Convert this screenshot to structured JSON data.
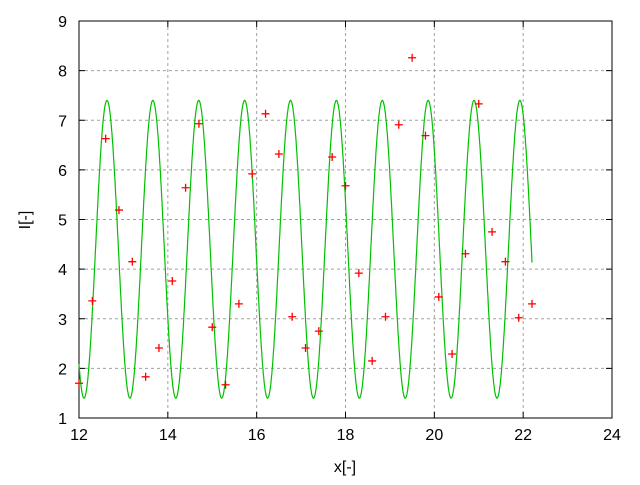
{
  "chart_data": {
    "type": "scatter",
    "xlabel": "x[-]",
    "ylabel": "I[-]",
    "xlim": [
      12,
      24
    ],
    "ylim": [
      1,
      9
    ],
    "grid": true,
    "xticks": [
      "12",
      "14",
      "16",
      "18",
      "20",
      "22",
      "24"
    ],
    "yticks": [
      "1",
      "2",
      "3",
      "4",
      "5",
      "6",
      "7",
      "8",
      "9"
    ],
    "colors": {
      "points": "#ff0000",
      "curve": "#00c000",
      "grid": "#a0a0a0"
    },
    "points": {
      "marker": "plus",
      "x": [
        12.0,
        12.3,
        12.6,
        12.9,
        13.2,
        13.5,
        13.8,
        14.1,
        14.4,
        14.7,
        15.0,
        15.3,
        15.6,
        15.9,
        16.2,
        16.5,
        16.8,
        17.1,
        17.4,
        17.7,
        18.0,
        18.3,
        18.6,
        18.9,
        19.2,
        19.5,
        19.8,
        20.1,
        20.4,
        20.7,
        21.0,
        21.3,
        21.6,
        21.9,
        22.2
      ],
      "y": [
        1.7,
        3.36,
        6.63,
        5.19,
        4.15,
        1.83,
        2.41,
        3.76,
        5.64,
        6.93,
        2.83,
        1.67,
        3.3,
        5.92,
        7.13,
        6.32,
        3.04,
        2.41,
        2.75,
        6.26,
        5.68,
        3.92,
        2.15,
        3.04,
        6.91,
        8.26,
        6.69,
        3.44,
        2.29,
        4.31,
        7.33,
        4.75,
        4.15,
        3.02,
        3.3
      ]
    },
    "fit_curve": {
      "type": "line",
      "x_range": [
        12,
        22.2
      ],
      "offset": 4.4,
      "amplitude": 3.0,
      "period": 1.033,
      "peak_x": 12.63
    }
  }
}
